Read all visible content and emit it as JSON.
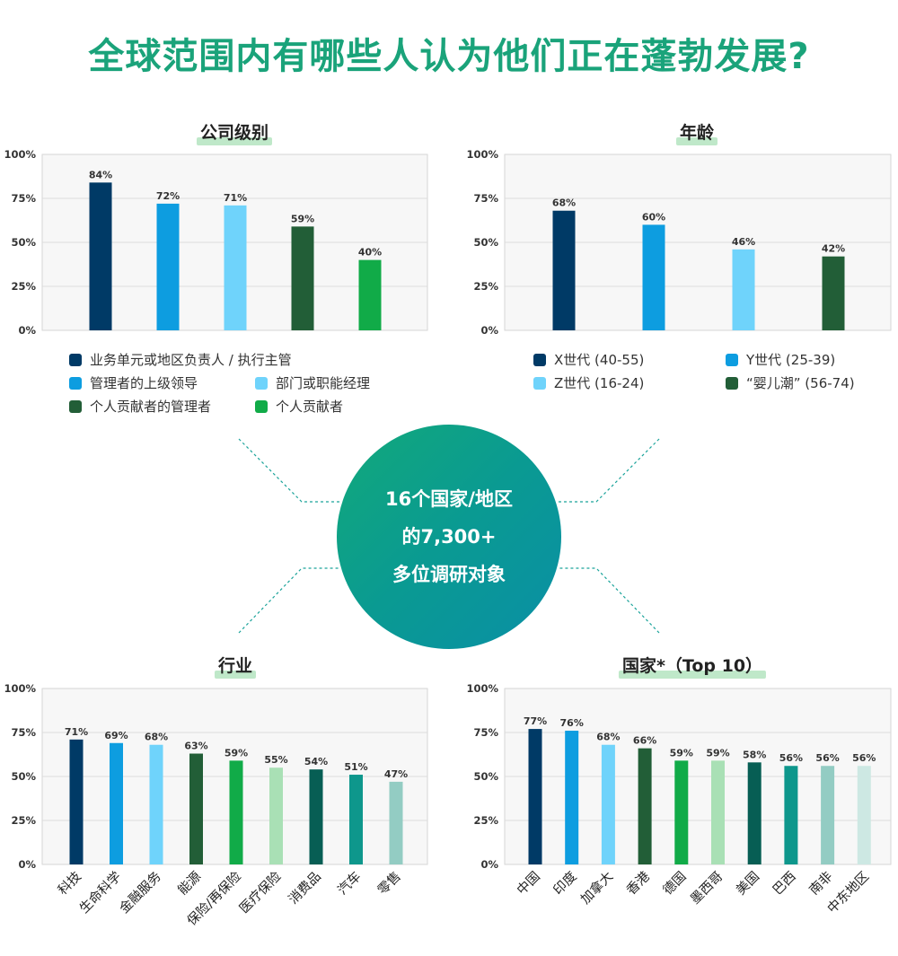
{
  "page": {
    "title": "全球范围内有哪些人认为他们正在蓬勃发展?",
    "center": {
      "line1": "16个国家/地区",
      "line2": "的7,300+",
      "line3": "多位调研对象"
    }
  },
  "yticks": [
    "100%",
    "75%",
    "50%",
    "25%",
    "0%"
  ],
  "chart_data": [
    {
      "type": "bar",
      "title": "公司级别",
      "categories": [
        "业务单元或地区负责人 / 执行主管",
        "管理者的上级领导",
        "部门或职能经理",
        "个人贡献者的管理者",
        "个人贡献者"
      ],
      "values": [
        84,
        72,
        71,
        59,
        40
      ],
      "value_labels": [
        "84%",
        "72%",
        "71%",
        "59%",
        "40%"
      ],
      "colors": [
        "#003a66",
        "#0d9de0",
        "#6fd3fb",
        "#225e37",
        "#11ab48"
      ],
      "ylim": [
        0,
        100
      ],
      "grid": true,
      "legend": "below",
      "legend_labels": [
        "业务单元或地区负责人 / 执行主管",
        "管理者的上级领导",
        "部门或职能经理",
        "个人贡献者的管理者",
        "个人贡献者"
      ]
    },
    {
      "type": "bar",
      "title": "年龄",
      "categories": [
        "X世代 (40-55)",
        "Y世代 (25-39)",
        "Z世代 (16-24)",
        "“婴儿潮” (56-74)"
      ],
      "values": [
        68,
        60,
        46,
        42
      ],
      "value_labels": [
        "68%",
        "60%",
        "46%",
        "42%"
      ],
      "colors": [
        "#003a66",
        "#0d9de0",
        "#6fd3fb",
        "#225e37"
      ],
      "ylim": [
        0,
        100
      ],
      "grid": true,
      "legend": "below",
      "legend_labels": [
        "X世代 (40-55)",
        "Y世代 (25-39)",
        "Z世代 (16-24)",
        "“婴儿潮” (56-74)"
      ]
    },
    {
      "type": "bar",
      "title": "行业",
      "categories": [
        "科技",
        "生命科学",
        "金融服务",
        "能源",
        "保险/再保险",
        "医疗保险",
        "消费品",
        "汽车",
        "零售"
      ],
      "values": [
        71,
        69,
        68,
        63,
        59,
        55,
        54,
        51,
        47
      ],
      "value_labels": [
        "71%",
        "69%",
        "68%",
        "63%",
        "59%",
        "55%",
        "54%",
        "51%",
        "47%"
      ],
      "colors": [
        "#003a66",
        "#0d9de0",
        "#6fd3fb",
        "#225e37",
        "#11ab48",
        "#a9e0b5",
        "#075e54",
        "#0e978c",
        "#93ccc3"
      ],
      "ylim": [
        0,
        100
      ],
      "grid": true
    },
    {
      "type": "bar",
      "title": "国家*（Top 10）",
      "categories": [
        "中国",
        "印度",
        "加拿大",
        "香港",
        "德国",
        "墨西哥",
        "美国",
        "巴西",
        "南非",
        "中东地区"
      ],
      "values": [
        77,
        76,
        68,
        66,
        59,
        59,
        58,
        56,
        56,
        56
      ],
      "value_labels": [
        "77%",
        "76%",
        "68%",
        "66%",
        "59%",
        "59%",
        "58%",
        "56%",
        "56%",
        "56%"
      ],
      "colors": [
        "#003a66",
        "#0d9de0",
        "#6fd3fb",
        "#225e37",
        "#11ab48",
        "#a9e0b5",
        "#075e54",
        "#0e978c",
        "#93ccc3",
        "#cde8e3"
      ],
      "ylim": [
        0,
        100
      ],
      "grid": true
    }
  ]
}
